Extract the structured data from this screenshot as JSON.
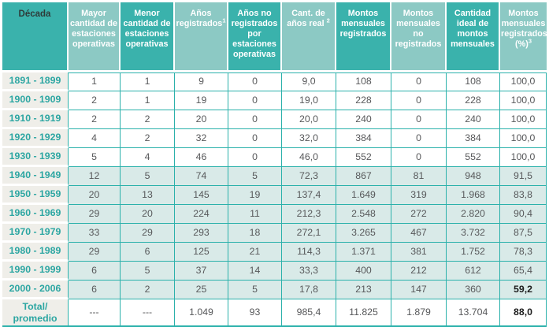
{
  "colors": {
    "header_dark": "#3ab2ac",
    "header_light": "#8cc9c4",
    "header_text": "#ffffff",
    "decade_header_text": "#2e3b3a",
    "grid": "#2bb1ab",
    "decade_text": "#2ca6a2",
    "row_label_bg": "#efeee9",
    "tint_bg": "#d9eae8",
    "value_text": "#57585a",
    "value_text_dark": "#1c1c1c"
  },
  "table": {
    "columns": [
      {
        "label": "Década",
        "sup": null,
        "shade": "dark"
      },
      {
        "label": "Mayor cantidad de estaciones operativas",
        "sup": null,
        "shade": "light"
      },
      {
        "label": "Menor cantidad de estaciones operativas",
        "sup": null,
        "shade": "dark"
      },
      {
        "label": "Años registrados",
        "sup": "1",
        "shade": "light"
      },
      {
        "label": "Años no registrados por estaciones operativas",
        "sup": null,
        "shade": "dark"
      },
      {
        "label": "Cant. de años real ",
        "sup": "2",
        "shade": "light"
      },
      {
        "label": "Montos mensuales registrados",
        "sup": null,
        "shade": "dark"
      },
      {
        "label": "Montos mensuales no registrados",
        "sup": null,
        "shade": "light"
      },
      {
        "label": "Cantidad ideal de montos mensuales",
        "sup": null,
        "shade": "dark"
      },
      {
        "label": "Montos mensuales registrados (%)",
        "sup": "3",
        "shade": "light"
      }
    ],
    "rows": [
      {
        "decade": "1891 - 1899",
        "values": [
          "1",
          "1",
          "9",
          "0",
          "9,0",
          "108",
          "0",
          "108",
          "100,0"
        ],
        "tinted": false,
        "dark_values": []
      },
      {
        "decade": "1900 - 1909",
        "values": [
          "2",
          "1",
          "19",
          "0",
          "19,0",
          "228",
          "0",
          "228",
          "100,0"
        ],
        "tinted": false,
        "dark_values": []
      },
      {
        "decade": "1910 - 1919",
        "values": [
          "2",
          "2",
          "20",
          "0",
          "20,0",
          "240",
          "0",
          "240",
          "100,0"
        ],
        "tinted": false,
        "dark_values": []
      },
      {
        "decade": "1920 - 1929",
        "values": [
          "4",
          "2",
          "32",
          "0",
          "32,0",
          "384",
          "0",
          "384",
          "100,0"
        ],
        "tinted": false,
        "dark_values": []
      },
      {
        "decade": "1930 - 1939",
        "values": [
          "5",
          "4",
          "46",
          "0",
          "46,0",
          "552",
          "0",
          "552",
          "100,0"
        ],
        "tinted": false,
        "dark_values": []
      },
      {
        "decade": "1940 - 1949",
        "values": [
          "12",
          "5",
          "74",
          "5",
          "72,3",
          "867",
          "81",
          "948",
          "91,5"
        ],
        "tinted": true,
        "dark_values": []
      },
      {
        "decade": "1950 - 1959",
        "values": [
          "20",
          "13",
          "145",
          "19",
          "137,4",
          "1.649",
          "319",
          "1.968",
          "83,8"
        ],
        "tinted": true,
        "dark_values": []
      },
      {
        "decade": "1960 - 1969",
        "values": [
          "29",
          "20",
          "224",
          "11",
          "212,3",
          "2.548",
          "272",
          "2.820",
          "90,4"
        ],
        "tinted": true,
        "dark_values": []
      },
      {
        "decade": "1970 - 1979",
        "values": [
          "33",
          "29",
          "293",
          "18",
          "272,1",
          "3.265",
          "467",
          "3.732",
          "87,5"
        ],
        "tinted": true,
        "dark_values": []
      },
      {
        "decade": "1980 - 1989",
        "values": [
          "29",
          "6",
          "125",
          "21",
          "114,3",
          "1.371",
          "381",
          "1.752",
          "78,3"
        ],
        "tinted": true,
        "dark_values": []
      },
      {
        "decade": "1990 - 1999",
        "values": [
          "6",
          "5",
          "37",
          "14",
          "33,3",
          "400",
          "212",
          "612",
          "65,4"
        ],
        "tinted": true,
        "dark_values": []
      },
      {
        "decade": "2000 - 2006",
        "values": [
          "6",
          "2",
          "25",
          "5",
          "17,8",
          "213",
          "147",
          "360",
          "59,2"
        ],
        "tinted": true,
        "dark_values": [
          8
        ]
      }
    ],
    "total_row": {
      "decade_line1": "Total/",
      "decade_line2": "promedio",
      "values": [
        "---",
        "---",
        "1.049",
        "93",
        "985,4",
        "11.825",
        "1.879",
        "13.704",
        "88,0"
      ],
      "dark_values": [
        8
      ]
    }
  }
}
